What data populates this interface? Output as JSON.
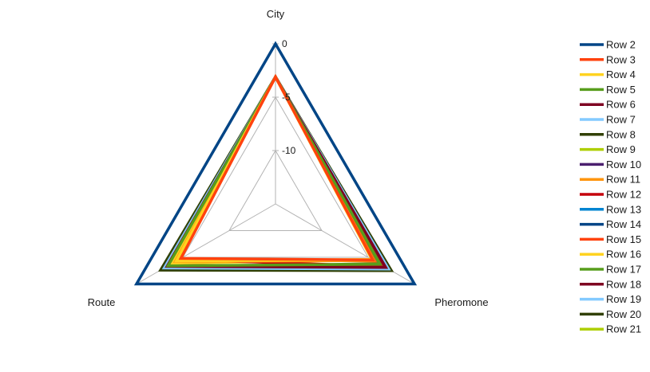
{
  "chart_data": {
    "type": "radar",
    "axes": [
      "City",
      "Pheromone",
      "Route"
    ],
    "ticks": [
      0,
      -5,
      -10
    ],
    "rlim": [
      -15,
      0
    ],
    "grid": true,
    "legend_position": "right",
    "series": [
      {
        "name": "Row 2",
        "color": "#004586",
        "values": [
          0,
          0,
          0
        ]
      },
      {
        "name": "Row 3",
        "color": "#ff420e",
        "values": [
          -3.1,
          -4.5,
          -4.8
        ]
      },
      {
        "name": "Row 4",
        "color": "#ffd320",
        "values": [
          -3.1,
          -4.6,
          -4.3
        ]
      },
      {
        "name": "Row 5",
        "color": "#579d1c",
        "values": [
          -3.1,
          -3.7,
          -3.4
        ]
      },
      {
        "name": "Row 6",
        "color": "#7e0021",
        "values": [
          -3.1,
          -3.1,
          -3.3
        ]
      },
      {
        "name": "Row 7",
        "color": "#83caff",
        "values": [
          -3.1,
          -2.8,
          -3.0
        ]
      },
      {
        "name": "Row 8",
        "color": "#314004",
        "values": [
          -3.1,
          -2.5,
          -2.6
        ]
      },
      {
        "name": "Row 9",
        "color": "#aecf00",
        "values": [
          -3.1,
          -2.6,
          -2.7
        ]
      },
      {
        "name": "Row 10",
        "color": "#4b1f6f",
        "values": [
          -3.1,
          -3.0,
          -3.1
        ]
      },
      {
        "name": "Row 11",
        "color": "#ff950e",
        "values": [
          -3.1,
          -4.4,
          -4.2
        ]
      },
      {
        "name": "Row 12",
        "color": "#c5000b",
        "values": [
          -3.1,
          -3.3,
          -4.6
        ]
      },
      {
        "name": "Row 13",
        "color": "#0084d1",
        "values": [
          -3.1,
          -2.9,
          -2.9
        ]
      },
      {
        "name": "Row 14",
        "color": "#004586",
        "values": [
          -3.1,
          -3.2,
          -2.8
        ]
      },
      {
        "name": "Row 15",
        "color": "#ff420e",
        "values": [
          -3.1,
          -4.3,
          -4.7
        ]
      },
      {
        "name": "Row 16",
        "color": "#ffd320",
        "values": [
          -3.1,
          -4.5,
          -3.9
        ]
      },
      {
        "name": "Row 17",
        "color": "#579d1c",
        "values": [
          -3.1,
          -3.8,
          -3.2
        ]
      },
      {
        "name": "Row 18",
        "color": "#7e0021",
        "values": [
          -3.1,
          -3.4,
          -3.5
        ]
      },
      {
        "name": "Row 19",
        "color": "#83caff",
        "values": [
          -3.1,
          -2.9,
          -3.4
        ]
      },
      {
        "name": "Row 20",
        "color": "#314004",
        "values": [
          -3.1,
          -2.5,
          -2.8
        ]
      },
      {
        "name": "Row 21",
        "color": "#aecf00",
        "values": [
          -3.1,
          -2.6,
          -2.7
        ]
      }
    ]
  }
}
